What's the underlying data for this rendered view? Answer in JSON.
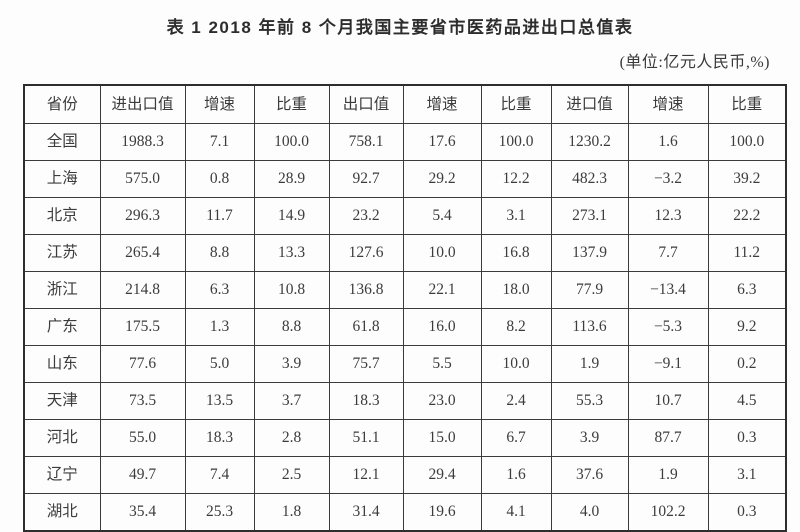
{
  "title": "表 1  2018 年前 8 个月我国主要省市医药品进出口总值表",
  "unit_note": "(单位:亿元人民币,%)",
  "table": {
    "headers": [
      "省份",
      "进出口值",
      "增速",
      "比重",
      "出口值",
      "增速",
      "比重",
      "进口值",
      "增速",
      "比重"
    ],
    "rows": [
      [
        "全国",
        "1988.3",
        "7.1",
        "100.0",
        "758.1",
        "17.6",
        "100.0",
        "1230.2",
        "1.6",
        "100.0"
      ],
      [
        "上海",
        "575.0",
        "0.8",
        "28.9",
        "92.7",
        "29.2",
        "12.2",
        "482.3",
        "−3.2",
        "39.2"
      ],
      [
        "北京",
        "296.3",
        "11.7",
        "14.9",
        "23.2",
        "5.4",
        "3.1",
        "273.1",
        "12.3",
        "22.2"
      ],
      [
        "江苏",
        "265.4",
        "8.8",
        "13.3",
        "127.6",
        "10.0",
        "16.8",
        "137.9",
        "7.7",
        "11.2"
      ],
      [
        "浙江",
        "214.8",
        "6.3",
        "10.8",
        "136.8",
        "22.1",
        "18.0",
        "77.9",
        "−13.4",
        "6.3"
      ],
      [
        "广东",
        "175.5",
        "1.3",
        "8.8",
        "61.8",
        "16.0",
        "8.2",
        "113.6",
        "−5.3",
        "9.2"
      ],
      [
        "山东",
        "77.6",
        "5.0",
        "3.9",
        "75.7",
        "5.5",
        "10.0",
        "1.9",
        "−9.1",
        "0.2"
      ],
      [
        "天津",
        "73.5",
        "13.5",
        "3.7",
        "18.3",
        "23.0",
        "2.4",
        "55.3",
        "10.7",
        "4.5"
      ],
      [
        "河北",
        "55.0",
        "18.3",
        "2.8",
        "51.1",
        "15.0",
        "6.7",
        "3.9",
        "87.7",
        "0.3"
      ],
      [
        "辽宁",
        "49.7",
        "7.4",
        "2.5",
        "12.1",
        "29.4",
        "1.6",
        "37.6",
        "1.9",
        "3.1"
      ],
      [
        "湖北",
        "35.4",
        "25.3",
        "1.8",
        "31.4",
        "19.6",
        "4.1",
        "4.0",
        "102.2",
        "0.3"
      ]
    ]
  }
}
